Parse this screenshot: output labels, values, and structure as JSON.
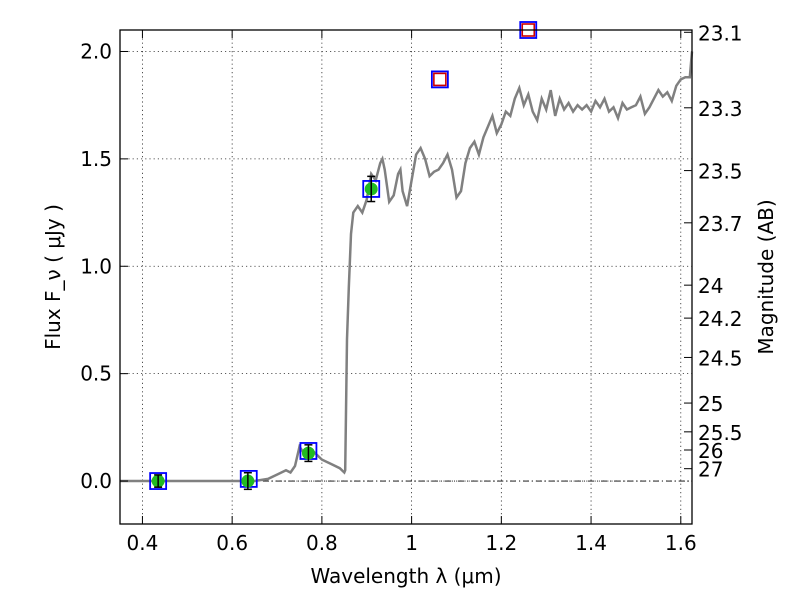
{
  "chart_data": {
    "type": "line",
    "xlabel": "Wavelength  λ (μm)",
    "ylabel": "Flux  F_ν  ( μJy )",
    "y2label": "Magnitude (AB)",
    "xlim": [
      0.35,
      1.625
    ],
    "ylim": [
      -0.2,
      2.1
    ],
    "x_ticks": [
      0.4,
      0.6,
      0.8,
      1.0,
      1.2,
      1.4,
      1.6
    ],
    "x_tick_labels": [
      "0.4",
      "0.6",
      "0.8",
      "1",
      "1.2",
      "1.4",
      "1.6"
    ],
    "y_ticks": [
      0.0,
      0.5,
      1.0,
      1.5,
      2.0
    ],
    "y_tick_labels": [
      "0.0",
      "0.5",
      "1.0",
      "1.5",
      "2.0"
    ],
    "y2_ticks": [
      "23.1",
      "23.3",
      "23.5",
      "23.7",
      "24",
      "24.2",
      "24.5",
      "25",
      "25.5",
      "26",
      "27"
    ],
    "grid": true,
    "colors": {
      "sed": "#808080",
      "obs_points": "#22bb22",
      "model_box": "#0000ff",
      "upper_box": "#cc0000"
    },
    "series": [
      {
        "role": "model",
        "x": [
          0.35,
          0.45,
          0.55,
          0.6,
          0.65,
          0.68,
          0.7,
          0.72,
          0.73,
          0.74,
          0.75,
          0.76,
          0.78,
          0.8,
          0.82,
          0.84,
          0.85,
          0.852,
          0.856,
          0.86,
          0.865,
          0.87,
          0.88,
          0.89,
          0.9,
          0.91,
          0.92,
          0.93,
          0.935,
          0.94,
          0.95,
          0.96,
          0.97,
          0.975,
          0.98,
          0.99,
          1.0,
          1.01,
          1.02,
          1.03,
          1.04,
          1.05,
          1.06,
          1.07,
          1.08,
          1.09,
          1.1,
          1.11,
          1.12,
          1.13,
          1.14,
          1.15,
          1.16,
          1.17,
          1.18,
          1.19,
          1.2,
          1.21,
          1.22,
          1.23,
          1.24,
          1.25,
          1.26,
          1.27,
          1.28,
          1.29,
          1.3,
          1.31,
          1.32,
          1.33,
          1.34,
          1.35,
          1.36,
          1.37,
          1.38,
          1.39,
          1.4,
          1.41,
          1.42,
          1.43,
          1.44,
          1.45,
          1.46,
          1.47,
          1.48,
          1.49,
          1.5,
          1.51,
          1.52,
          1.53,
          1.54,
          1.55,
          1.56,
          1.57,
          1.58,
          1.59,
          1.6,
          1.61,
          1.62,
          1.625
        ],
        "y": [
          0.0,
          0.0,
          0.0,
          0.0,
          0.0,
          0.01,
          0.03,
          0.05,
          0.04,
          0.07,
          0.16,
          0.13,
          0.14,
          0.1,
          0.08,
          0.06,
          0.04,
          0.05,
          0.66,
          0.9,
          1.15,
          1.25,
          1.28,
          1.25,
          1.31,
          1.43,
          1.4,
          1.48,
          1.5,
          1.45,
          1.3,
          1.33,
          1.43,
          1.45,
          1.35,
          1.28,
          1.4,
          1.52,
          1.55,
          1.5,
          1.42,
          1.44,
          1.45,
          1.48,
          1.52,
          1.45,
          1.32,
          1.35,
          1.48,
          1.55,
          1.58,
          1.52,
          1.6,
          1.65,
          1.7,
          1.62,
          1.66,
          1.72,
          1.7,
          1.78,
          1.83,
          1.75,
          1.8,
          1.72,
          1.68,
          1.78,
          1.73,
          1.82,
          1.7,
          1.78,
          1.73,
          1.76,
          1.72,
          1.75,
          1.73,
          1.75,
          1.72,
          1.77,
          1.74,
          1.78,
          1.72,
          1.74,
          1.69,
          1.76,
          1.73,
          1.74,
          1.75,
          1.79,
          1.71,
          1.74,
          1.78,
          1.82,
          1.79,
          1.81,
          1.77,
          1.84,
          1.87,
          1.88,
          1.88,
          2.0
        ]
      }
    ],
    "observed": [
      {
        "x": 0.435,
        "y": 0.0,
        "err": 0.01
      },
      {
        "x": 0.635,
        "y": 0.0,
        "err": 0.02
      },
      {
        "x": 0.77,
        "y": 0.13,
        "err": 0.02
      },
      {
        "x": 0.91,
        "y": 1.36,
        "err": 0.04
      }
    ],
    "model_photometry": [
      {
        "x": 0.435,
        "y": 0.0
      },
      {
        "x": 0.637,
        "y": 0.01
      },
      {
        "x": 0.77,
        "y": 0.14
      },
      {
        "x": 0.91,
        "y": 1.36
      },
      {
        "x": 1.063,
        "y": 1.87
      },
      {
        "x": 1.26,
        "y": 2.1
      }
    ],
    "upper_limits": [
      {
        "x": 1.063,
        "y": 1.87
      },
      {
        "x": 1.26,
        "y": 2.1
      }
    ]
  }
}
